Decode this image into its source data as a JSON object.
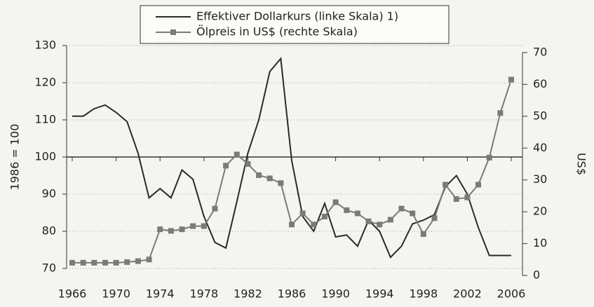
{
  "chart_data": {
    "type": "line",
    "ylabel": "1986 = 100",
    "y2label": "US$",
    "x": [
      1966,
      1967,
      1968,
      1969,
      1970,
      1971,
      1972,
      1973,
      1974,
      1975,
      1976,
      1977,
      1978,
      1979,
      1980,
      1981,
      1982,
      1983,
      1984,
      1985,
      1986,
      1987,
      1988,
      1989,
      1990,
      1991,
      1992,
      1993,
      1994,
      1995,
      1996,
      1997,
      1998,
      1999,
      2000,
      2001,
      2002,
      2003,
      2004,
      2005,
      2006
    ],
    "xlim": [
      1966,
      2006
    ],
    "xticks": [
      1966,
      1970,
      1974,
      1978,
      1982,
      1986,
      1990,
      1994,
      1998,
      2002,
      2006
    ],
    "ylim": [
      70,
      130
    ],
    "yticks": [
      70,
      80,
      90,
      100,
      110,
      120,
      130
    ],
    "y2lim": [
      0,
      70
    ],
    "y2ticks": [
      0,
      10,
      20,
      30,
      40,
      50,
      60,
      70
    ],
    "grid": true,
    "series": [
      {
        "name": "Effektiver Dollarkurs (linke Skala) 1)",
        "color": "#2a2a2a",
        "marker": "none",
        "values": [
          111,
          111,
          113,
          114,
          112,
          109.5,
          101,
          89,
          91.5,
          89,
          96.5,
          94,
          84,
          77,
          75.5,
          88,
          101,
          110,
          123,
          126.5,
          99,
          84,
          80,
          87.5,
          78.5,
          79,
          76,
          83,
          80,
          73,
          76,
          82,
          83,
          84.5,
          92,
          95,
          90,
          81,
          73.5,
          73.5,
          73.5
        ]
      },
      {
        "name": "Ölpreis in US$ (rechte Skala)",
        "color": "#7a7a7a",
        "marker": "square",
        "axis": "y2",
        "values": [
          4,
          4,
          4,
          4,
          4,
          4.2,
          4.5,
          5,
          14.5,
          14,
          14.5,
          15.5,
          15.5,
          21,
          34.5,
          38,
          35,
          31.5,
          30.5,
          29,
          16,
          19.5,
          16,
          18.5,
          23,
          20.5,
          19.5,
          17,
          16,
          17.5,
          21,
          19.5,
          13,
          18,
          28.5,
          24,
          24.5,
          28.5,
          37,
          51,
          61.5
        ]
      }
    ]
  }
}
